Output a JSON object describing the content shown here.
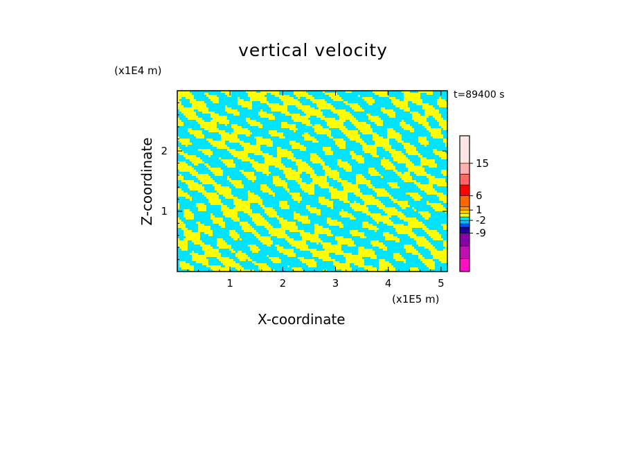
{
  "chart_data": {
    "type": "heatmap",
    "title": "vertical velocity",
    "xlabel": "X-coordinate",
    "ylabel": "Z-coordinate",
    "x_unit": "(x1E5 m)",
    "y_unit": "(x1E4 m)",
    "time_label": "t=89400 s",
    "xlim": [
      0,
      5.12
    ],
    "ylim": [
      0,
      3.0
    ],
    "x_ticks": [
      "1",
      "2",
      "3",
      "4",
      "5"
    ],
    "y_ticks": [
      "1",
      "2"
    ],
    "colorbar": {
      "tick_labels": [
        "15",
        "6",
        "1",
        "-2",
        "-9"
      ],
      "levels": [
        {
          "color": "#ff10c0"
        },
        {
          "color": "#c010b0"
        },
        {
          "color": "#8800aa"
        },
        {
          "color": "#220099"
        },
        {
          "color": "#0050ff"
        },
        {
          "color": "#00c0ff"
        },
        {
          "color": "#00e4ff"
        },
        {
          "color": "#ffff00"
        },
        {
          "color": "#ffd000"
        },
        {
          "color": "#ff9900"
        },
        {
          "color": "#ff6600"
        },
        {
          "color": "#ff0000"
        },
        {
          "color": "#ff6666"
        },
        {
          "color": "#ffb0b0"
        },
        {
          "color": "#ffe4e4"
        }
      ]
    },
    "field_colors": {
      "positive": "#ffff00",
      "negative": "#00e4ff"
    }
  }
}
